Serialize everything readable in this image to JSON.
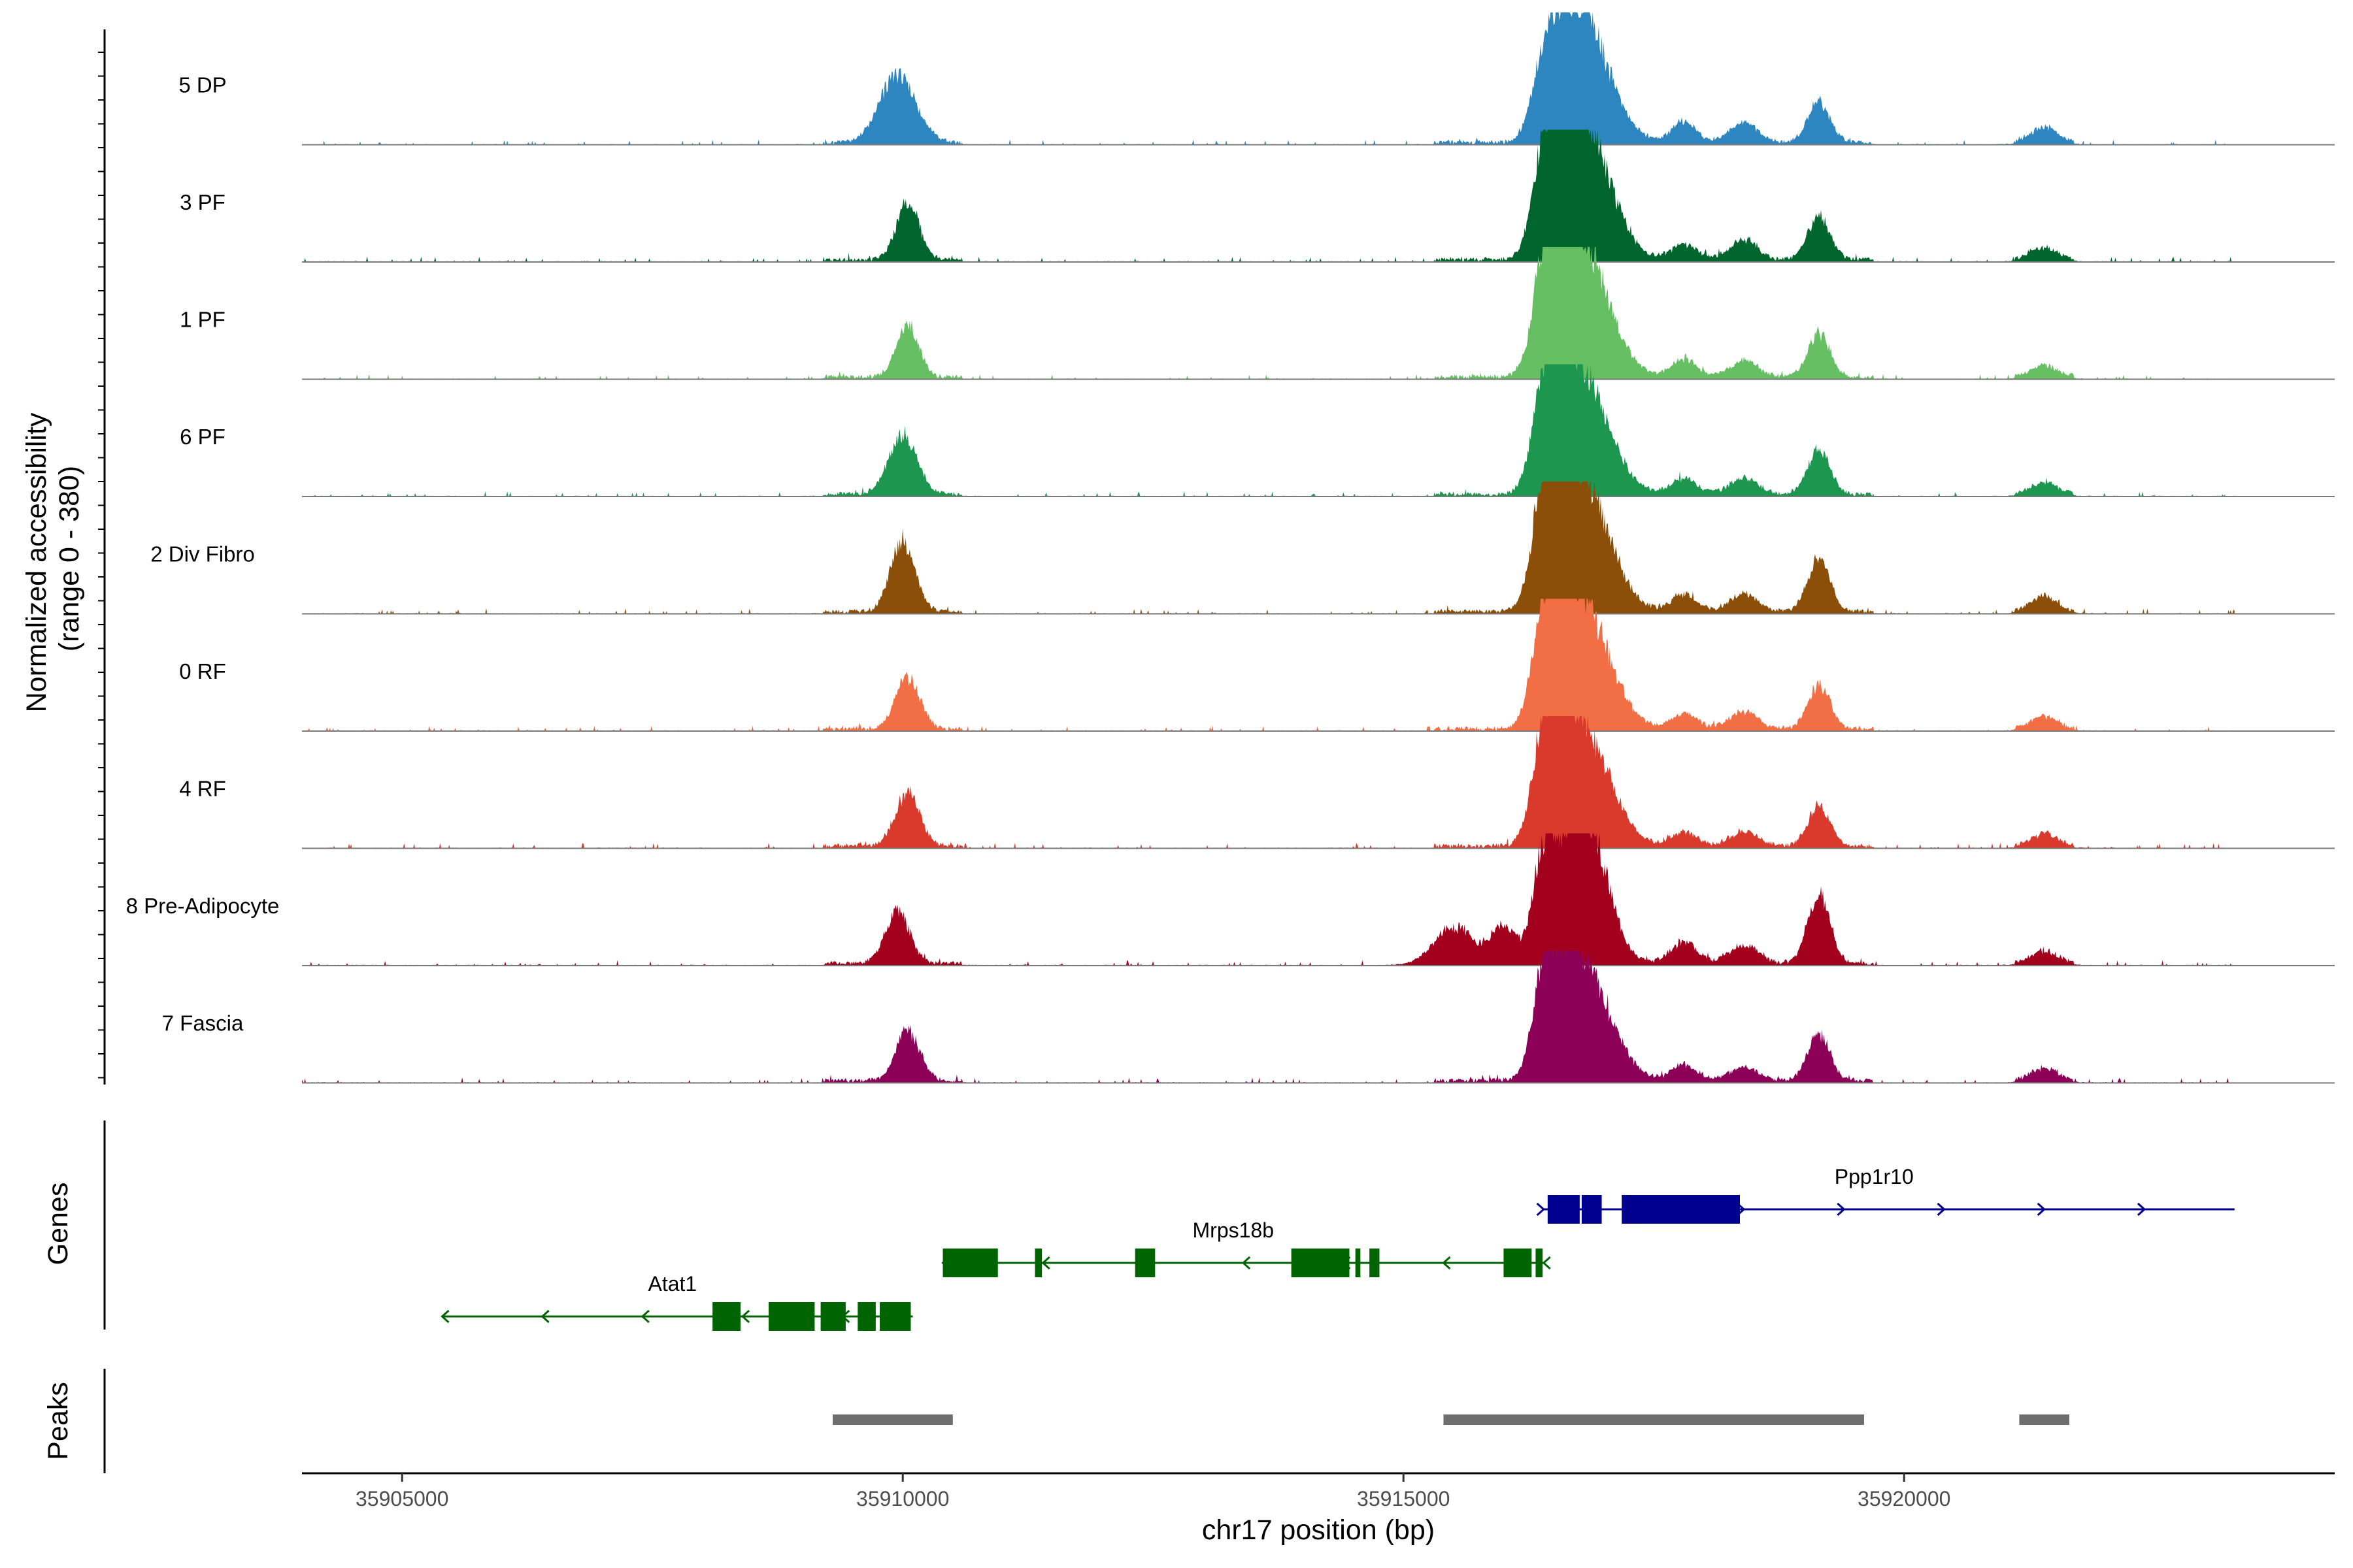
{
  "chart_data": {
    "type": "genome-browser coverage plot",
    "region": {
      "chromosome": "chr17",
      "start": 35904000,
      "end": 35924300
    },
    "coverage_panel": {
      "ylabel_line1": "Normalized accessibility",
      "ylabel_line2": "(range 0 - 380)",
      "ylim": [
        0,
        380
      ],
      "tracks": [
        {
          "name": "5 DP",
          "color": "#2e86c1",
          "scale": 0.95,
          "peaks": [
            [
              35909950,
              230,
              180
            ],
            [
              35916400,
              160,
              110
            ],
            [
              35916600,
              260,
              180
            ],
            [
              35916850,
              330,
              250
            ],
            [
              35917800,
              70,
              120
            ],
            [
              35918400,
              70,
              140
            ],
            [
              35919150,
              140,
              110
            ],
            [
              35921400,
              55,
              130
            ]
          ]
        },
        {
          "name": "3 PF",
          "color": "#00662e",
          "scale": 1.0,
          "peaks": [
            [
              35910050,
              190,
              110
            ],
            [
              35916400,
              220,
              110
            ],
            [
              35916600,
              270,
              180
            ],
            [
              35916850,
              350,
              250
            ],
            [
              35917800,
              50,
              130
            ],
            [
              35918400,
              60,
              140
            ],
            [
              35919150,
              140,
              110
            ],
            [
              35921400,
              40,
              130
            ]
          ]
        },
        {
          "name": "1 PF",
          "color": "#66bf63",
          "scale": 0.95,
          "peaks": [
            [
              35910050,
              180,
              110
            ],
            [
              35916400,
              250,
              110
            ],
            [
              35916600,
              280,
              180
            ],
            [
              35916850,
              350,
              250
            ],
            [
              35917800,
              60,
              130
            ],
            [
              35918400,
              55,
              140
            ],
            [
              35919150,
              150,
              110
            ],
            [
              35921400,
              40,
              130
            ]
          ]
        },
        {
          "name": "6 PF",
          "color": "#1d9650",
          "scale": 0.95,
          "peaks": [
            [
              35910000,
              200,
              140
            ],
            [
              35916400,
              240,
              110
            ],
            [
              35916600,
              280,
              180
            ],
            [
              35916850,
              300,
              250
            ],
            [
              35917800,
              55,
              130
            ],
            [
              35918400,
              55,
              140
            ],
            [
              35919150,
              150,
              110
            ],
            [
              35921400,
              40,
              130
            ]
          ]
        },
        {
          "name": "2 Div Fibro",
          "color": "#8c4f0a",
          "scale": 1.0,
          "peaks": [
            [
              35910000,
              230,
              120
            ],
            [
              35916400,
              280,
              110
            ],
            [
              35916600,
              260,
              180
            ],
            [
              35916850,
              330,
              250
            ],
            [
              35917800,
              55,
              130
            ],
            [
              35918400,
              55,
              140
            ],
            [
              35919150,
              170,
              110
            ],
            [
              35921400,
              50,
              130
            ]
          ]
        },
        {
          "name": "0 RF",
          "color": "#f26e44",
          "scale": 1.0,
          "peaks": [
            [
              35910050,
              170,
              120
            ],
            [
              35916400,
              270,
              110
            ],
            [
              35916600,
              250,
              180
            ],
            [
              35916850,
              320,
              250
            ],
            [
              35917800,
              50,
              130
            ],
            [
              35918400,
              55,
              140
            ],
            [
              35919150,
              140,
              110
            ],
            [
              35921400,
              40,
              130
            ]
          ]
        },
        {
          "name": "4 RF",
          "color": "#d93a2b",
          "scale": 1.0,
          "peaks": [
            [
              35910050,
              170,
              120
            ],
            [
              35916400,
              270,
              110
            ],
            [
              35916600,
              240,
              180
            ],
            [
              35916850,
              300,
              250
            ],
            [
              35917800,
              45,
              130
            ],
            [
              35918400,
              45,
              140
            ],
            [
              35919150,
              130,
              110
            ],
            [
              35921400,
              40,
              130
            ]
          ]
        },
        {
          "name": "8 Pre-Adipocyte",
          "color": "#a3001e",
          "scale": 1.0,
          "peaks": [
            [
              35909950,
              170,
              120
            ],
            [
              35915500,
              120,
              200
            ],
            [
              35916000,
              120,
              120
            ],
            [
              35916400,
              270,
              110
            ],
            [
              35916600,
              200,
              180
            ],
            [
              35916850,
              410,
              200
            ],
            [
              35917800,
              70,
              130
            ],
            [
              35918400,
              60,
              140
            ],
            [
              35919150,
              230,
              110
            ],
            [
              35921400,
              40,
              130
            ]
          ]
        },
        {
          "name": "7 Fascia",
          "color": "#8c0057",
          "scale": 1.0,
          "peaks": [
            [
              35910050,
              160,
              120
            ],
            [
              35916400,
              240,
              110
            ],
            [
              35916600,
              210,
              180
            ],
            [
              35916850,
              300,
              250
            ],
            [
              35917800,
              50,
              130
            ],
            [
              35918400,
              45,
              140
            ],
            [
              35919150,
              150,
              110
            ],
            [
              35921400,
              40,
              130
            ]
          ]
        }
      ]
    },
    "genes_panel": {
      "title": "Genes",
      "genes": [
        {
          "name": "Atat1",
          "color": "#006400",
          "strand": "-",
          "start": 35905400,
          "end": 35910100,
          "exons": [
            [
              35908100,
              35908380
            ],
            [
              35908660,
              35909120
            ],
            [
              35909180,
              35909430
            ],
            [
              35909550,
              35909730
            ],
            [
              35909770,
              35910080
            ]
          ]
        },
        {
          "name": "Mrps18b",
          "color": "#006400",
          "strand": "-",
          "start": 35910400,
          "end": 35916400,
          "exons": [
            [
              35910400,
              35910950
            ],
            [
              35911320,
              35911390
            ],
            [
              35912320,
              35912520
            ],
            [
              35913880,
              35914460
            ],
            [
              35914520,
              35914570
            ],
            [
              35914660,
              35914760
            ],
            [
              35916000,
              35916280
            ],
            [
              35916320,
              35916390
            ]
          ]
        },
        {
          "name": "Ppp1r10",
          "color": "#000090",
          "strand": "+",
          "start": 35916400,
          "end": 35923300,
          "exons": [
            [
              35916440,
              35916760
            ],
            [
              35916780,
              35916980
            ],
            [
              35917180,
              35918360
            ]
          ]
        }
      ]
    },
    "peaks_panel": {
      "title": "Peaks",
      "color": "#6e6e6e",
      "peaks": [
        [
          35909300,
          35910500
        ],
        [
          35915400,
          35919600
        ],
        [
          35921150,
          35921650
        ]
      ]
    },
    "x_axis": {
      "title": "chr17 position (bp)",
      "ticks": [
        35905000,
        35910000,
        35915000,
        35920000
      ],
      "tick_labels": [
        "35905000",
        "35910000",
        "35915000",
        "35920000"
      ]
    }
  }
}
